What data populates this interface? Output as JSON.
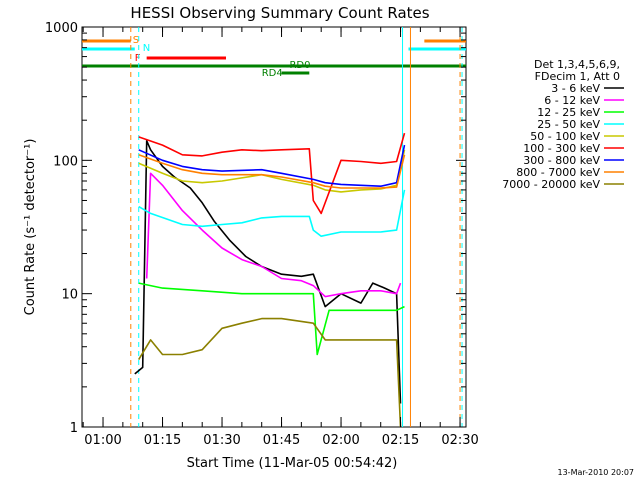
{
  "chart_data": {
    "type": "line",
    "title": "HESSI Observing Summary Count Rates",
    "xlabel": "Start Time (11-Mar-05 00:54:42)",
    "ylabel": "Count Rate (s⁻¹ detector⁻¹)",
    "y_scale": "log",
    "ylim": [
      1,
      1000
    ],
    "xlim": [
      "00:54:42",
      "02:31:30"
    ],
    "x_ticks": [
      "01:00",
      "01:15",
      "01:30",
      "01:45",
      "02:00",
      "02:15",
      "02:30"
    ],
    "y_ticks": [
      "1",
      "10",
      "100",
      "1000"
    ],
    "legend_header": [
      "Det 1,3,4,5,6,9,",
      "FDecim 1, Att 0"
    ],
    "legend_position": "right",
    "footer_date": "13-Mar-2010 20:07",
    "flag_labels": {
      "saa": "S",
      "night": "N",
      "flare": "F",
      "rd0": "RD0",
      "rd4": "RD4"
    },
    "flags": {
      "saa": [
        [
          "00:54:42",
          "01:07:00"
        ],
        [
          "02:21:00",
          "02:31:30"
        ]
      ],
      "night": [
        [
          "00:54:42",
          "01:08:00"
        ],
        [
          "02:17:00",
          "02:31:30"
        ]
      ],
      "flare": [
        [
          "01:11:00",
          "01:31:00"
        ]
      ],
      "rd0": [
        [
          "00:54:42",
          "02:31:30"
        ]
      ],
      "rd4": [
        [
          "01:45:00",
          "01:52:00"
        ]
      ]
    },
    "vlines": [
      {
        "time": "01:07:00",
        "color": "#ff8000",
        "dash": true
      },
      {
        "time": "01:09:00",
        "color": "#00ffff",
        "dash": true
      },
      {
        "time": "02:15:30",
        "color": "#00ffff",
        "dash": false
      },
      {
        "time": "02:17:30",
        "color": "#ff8000",
        "dash": false
      },
      {
        "time": "02:30:00",
        "color": "#ff8000",
        "dash": true
      },
      {
        "time": "02:30:30",
        "color": "#00ffff",
        "dash": true
      }
    ],
    "series": [
      {
        "name": "3 - 6 keV",
        "color": "#000000",
        "x": [
          "01:08",
          "01:10",
          "01:11",
          "01:12",
          "01:15",
          "01:18",
          "01:22",
          "01:25",
          "01:28",
          "01:32",
          "01:36",
          "01:40",
          "01:45",
          "01:50",
          "01:53",
          "01:56",
          "02:00",
          "02:05",
          "02:08",
          "02:11",
          "02:14",
          "02:15"
        ],
        "y": [
          2.5,
          2.8,
          140,
          120,
          90,
          75,
          62,
          48,
          35,
          25,
          19,
          16,
          14,
          13.5,
          14,
          8,
          10,
          8.5,
          12,
          11,
          10,
          1.5
        ]
      },
      {
        "name": "6 - 12 keV",
        "color": "#ff00ff",
        "x": [
          "01:11",
          "01:12",
          "01:15",
          "01:20",
          "01:25",
          "01:30",
          "01:35",
          "01:40",
          "01:45",
          "01:50",
          "01:53",
          "01:56",
          "02:00",
          "02:05",
          "02:10",
          "02:14",
          "02:15"
        ],
        "y": [
          13,
          80,
          65,
          42,
          30,
          22,
          18,
          16,
          13,
          12.5,
          11.5,
          9.5,
          10,
          10.5,
          10.5,
          10,
          12
        ]
      },
      {
        "name": "12 - 25 keV",
        "color": "#00ff00",
        "x": [
          "01:09",
          "01:15",
          "01:25",
          "01:35",
          "01:40",
          "01:45",
          "01:53",
          "01:54",
          "01:57",
          "02:00",
          "02:05",
          "02:10",
          "02:14",
          "02:16"
        ],
        "y": [
          12,
          11,
          10.5,
          10,
          10,
          10,
          10,
          3.5,
          7.5,
          7.5,
          7.5,
          7.5,
          7.5,
          8
        ]
      },
      {
        "name": "25 - 50 keV",
        "color": "#00ffff",
        "x": [
          "01:09",
          "01:12",
          "01:20",
          "01:25",
          "01:30",
          "01:35",
          "01:40",
          "01:45",
          "01:52",
          "01:53",
          "01:55",
          "02:00",
          "02:05",
          "02:10",
          "02:14",
          "02:16"
        ],
        "y": [
          45,
          40,
          33,
          32,
          33,
          34,
          37,
          38,
          38,
          30,
          27,
          29,
          29,
          29,
          30,
          60
        ]
      },
      {
        "name": "50 - 100 keV",
        "color": "#c8c800",
        "x": [
          "01:09",
          "01:15",
          "01:20",
          "01:25",
          "01:30",
          "01:40",
          "01:45",
          "01:53",
          "01:56",
          "02:00",
          "02:05",
          "02:10",
          "02:14",
          "02:16"
        ],
        "y": [
          95,
          80,
          70,
          68,
          70,
          78,
          72,
          65,
          60,
          58,
          60,
          61,
          65,
          120
        ]
      },
      {
        "name": "100 - 300 keV",
        "color": "#ff0000",
        "x": [
          "01:09",
          "01:15",
          "01:20",
          "01:25",
          "01:30",
          "01:35",
          "01:40",
          "01:45",
          "01:52",
          "01:53",
          "01:55",
          "02:00",
          "02:05",
          "02:10",
          "02:14",
          "02:16"
        ],
        "y": [
          150,
          130,
          110,
          108,
          115,
          120,
          118,
          120,
          122,
          50,
          40,
          100,
          98,
          95,
          98,
          160
        ]
      },
      {
        "name": "300 - 800 keV",
        "color": "#0000ff",
        "x": [
          "01:09",
          "01:15",
          "01:20",
          "01:25",
          "01:30",
          "01:40",
          "01:45",
          "01:53",
          "01:56",
          "02:00",
          "02:05",
          "02:10",
          "02:14",
          "02:16"
        ],
        "y": [
          120,
          100,
          90,
          85,
          83,
          85,
          80,
          72,
          68,
          66,
          65,
          64,
          68,
          130
        ]
      },
      {
        "name": "800 - 7000 keV",
        "color": "#ff8000",
        "x": [
          "01:09",
          "01:15",
          "01:20",
          "01:25",
          "01:30",
          "01:40",
          "01:45",
          "01:53",
          "01:56",
          "02:00",
          "02:05",
          "02:10",
          "02:14",
          "02:16"
        ],
        "y": [
          110,
          95,
          85,
          80,
          78,
          78,
          75,
          68,
          64,
          62,
          62,
          62,
          63,
          110
        ]
      },
      {
        "name": "7000 - 20000 keV",
        "color": "#8b8000",
        "x": [
          "01:09",
          "01:12",
          "01:15",
          "01:20",
          "01:25",
          "01:30",
          "01:35",
          "01:40",
          "01:45",
          "01:53",
          "01:56",
          "02:00",
          "02:05",
          "02:10",
          "02:14",
          "02:15"
        ],
        "y": [
          3.2,
          4.5,
          3.5,
          3.5,
          3.8,
          5.5,
          6,
          6.5,
          6.5,
          6,
          4.5,
          4.5,
          4.5,
          4.5,
          4.5,
          1
        ]
      }
    ]
  }
}
